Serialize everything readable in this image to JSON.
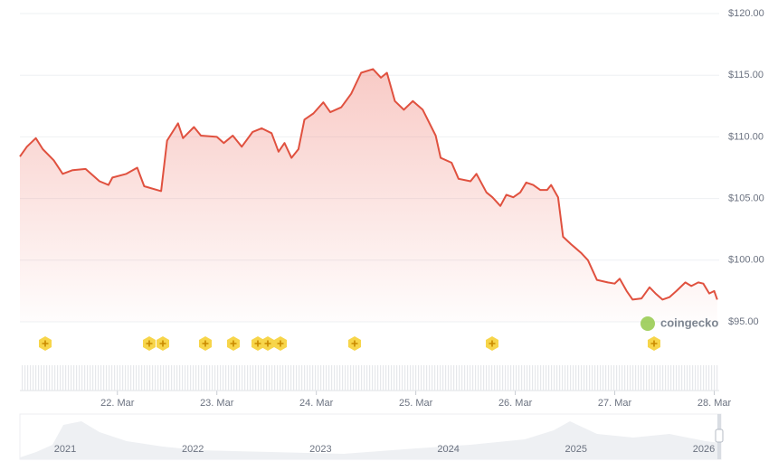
{
  "chart_data": {
    "type": "line",
    "color": "#e0513f",
    "grid": true,
    "x": [
      21.02,
      21.09,
      21.18,
      21.25,
      21.36,
      21.45,
      21.55,
      21.68,
      21.82,
      21.91,
      21.95,
      22.09,
      22.2,
      22.27,
      22.44,
      22.5,
      22.61,
      22.66,
      22.77,
      22.84,
      23.0,
      23.07,
      23.16,
      23.25,
      23.36,
      23.45,
      23.55,
      23.62,
      23.68,
      23.75,
      23.82,
      23.88,
      23.97,
      24.07,
      24.14,
      24.25,
      24.35,
      24.45,
      24.57,
      24.65,
      24.71,
      24.79,
      24.88,
      24.97,
      25.07,
      25.2,
      25.25,
      25.36,
      25.43,
      25.55,
      25.61,
      25.71,
      25.77,
      25.85,
      25.91,
      25.98,
      26.05,
      26.11,
      26.18,
      26.25,
      26.32,
      26.36,
      26.43,
      26.48,
      26.56,
      26.66,
      26.73,
      26.82,
      26.93,
      27.0,
      27.05,
      27.12,
      27.18,
      27.27,
      27.35,
      27.41,
      27.48,
      27.55,
      27.62,
      27.71,
      27.77,
      27.84,
      27.89,
      27.95,
      28.0,
      28.03
    ],
    "values": [
      108.4,
      109.2,
      109.9,
      109.0,
      108.1,
      107.0,
      107.3,
      107.4,
      106.4,
      106.1,
      106.7,
      107.0,
      107.5,
      106.0,
      105.6,
      109.7,
      111.1,
      109.9,
      110.8,
      110.1,
      110.0,
      109.5,
      110.1,
      109.2,
      110.4,
      110.7,
      110.3,
      108.8,
      109.5,
      108.3,
      109.0,
      111.4,
      111.9,
      112.8,
      112.0,
      112.4,
      113.5,
      115.2,
      115.5,
      114.8,
      115.2,
      112.9,
      112.2,
      112.9,
      112.2,
      110.1,
      108.3,
      107.9,
      106.6,
      106.4,
      107.0,
      105.5,
      105.1,
      104.4,
      105.3,
      105.1,
      105.5,
      106.3,
      106.1,
      105.7,
      105.7,
      106.1,
      105.1,
      101.9,
      101.3,
      100.6,
      100.0,
      98.4,
      98.2,
      98.1,
      98.5,
      97.5,
      96.8,
      96.9,
      97.8,
      97.3,
      96.8,
      97.0,
      97.5,
      98.2,
      97.9,
      98.2,
      98.1,
      97.3,
      97.5,
      96.8
    ],
    "xlim": [
      21.02,
      28.05
    ],
    "xticks": [
      {
        "value": 22,
        "label": "22. Mar"
      },
      {
        "value": 23,
        "label": "23. Mar"
      },
      {
        "value": 24,
        "label": "24. Mar"
      },
      {
        "value": 25,
        "label": "25. Mar"
      },
      {
        "value": 26,
        "label": "26. Mar"
      },
      {
        "value": 27,
        "label": "27. Mar"
      },
      {
        "value": 28,
        "label": "28. Mar"
      }
    ],
    "ylim": [
      95,
      120
    ],
    "yticks": [
      {
        "value": 95,
        "label": "$95.00"
      },
      {
        "value": 100,
        "label": "$100.00"
      },
      {
        "value": 105,
        "label": "$105.00"
      },
      {
        "value": 110,
        "label": "$110.00"
      },
      {
        "value": 115,
        "label": "$115.00"
      },
      {
        "value": 120,
        "label": "$120.00"
      }
    ]
  },
  "watermark": "coingecko",
  "navigator": {
    "labels": [
      "2021",
      "2022",
      "2023",
      "2024",
      "2025",
      "2026"
    ]
  }
}
